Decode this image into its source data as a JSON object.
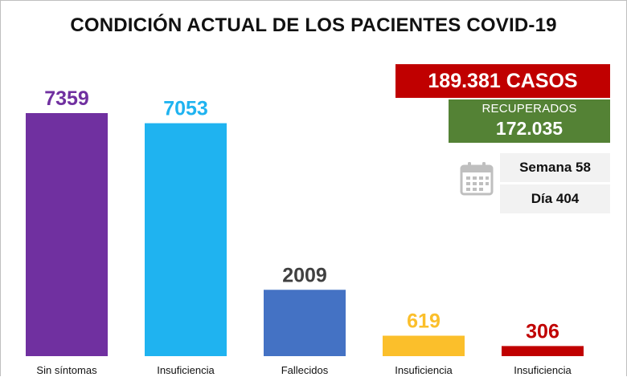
{
  "chart_data": {
    "type": "bar",
    "title": "CONDICIÓN ACTUAL DE LOS PACIENTES COVID-19",
    "categories": [
      "Sin síntomas",
      "Insuficiencia",
      "Fallecidos",
      "Insuficiencia",
      "Insuficiencia"
    ],
    "values": [
      7359,
      7053,
      2009,
      619,
      306
    ],
    "value_labels": [
      "7359",
      "7053",
      "2009",
      "619",
      "306"
    ],
    "bar_colors": [
      "#7030a0",
      "#1fb3f0",
      "#4472c4",
      "#fbbf2b",
      "#c00000"
    ],
    "label_colors": [
      "#7030a0",
      "#1fb3f0",
      "#404040",
      "#fbbf2b",
      "#c00000"
    ],
    "ylim": [
      0,
      7359
    ],
    "grid": false,
    "xlabel": "",
    "ylabel": ""
  },
  "stats": {
    "casos": "189.381 CASOS",
    "recuperados_label": "RECUPERADOS",
    "recuperados_value": "172.035",
    "semana": "Semana 58",
    "dia": "Día 404"
  },
  "colors": {
    "casos_bg": "#c00000",
    "recuperados_bg": "#548235",
    "info_bg": "#f2f2f2",
    "icon": "#bfbfbf"
  },
  "icons": [
    "calendar-icon"
  ]
}
